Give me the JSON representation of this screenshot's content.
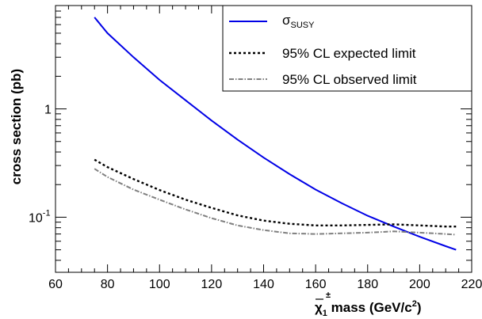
{
  "chart_data": {
    "type": "line",
    "title": "",
    "xlabel": {
      "prefix": "χ",
      "sub": "1",
      "sup": "±",
      "rest": " mass (GeV/c",
      "exp": "2",
      "close": ")"
    },
    "ylabel": "cross section (pb)",
    "xlim": [
      60,
      220
    ],
    "ylim": [
      0.031,
      9.0
    ],
    "yscale": "log",
    "xticks": [
      60,
      80,
      100,
      120,
      140,
      160,
      180,
      200,
      220
    ],
    "yticks": [
      {
        "value": 1,
        "label": "1",
        "exp": ""
      },
      {
        "value": 0.1,
        "label": "10",
        "exp": "-1"
      }
    ],
    "legend_position": "top-right",
    "series": [
      {
        "name": "σSUSY",
        "name_base": "σ",
        "name_sub": "SUSY",
        "color": "#0000e6",
        "style": "solid",
        "x": [
          75,
          80,
          90,
          100,
          110,
          120,
          130,
          140,
          150,
          160,
          170,
          180,
          190,
          200,
          210,
          214
        ],
        "y": [
          7.0,
          5.0,
          3.0,
          1.85,
          1.2,
          0.78,
          0.52,
          0.355,
          0.25,
          0.18,
          0.135,
          0.103,
          0.082,
          0.066,
          0.054,
          0.05
        ]
      },
      {
        "name": "95% CL expected limit",
        "color": "#000000",
        "style": "dashed",
        "x": [
          75,
          80,
          90,
          100,
          110,
          120,
          130,
          140,
          150,
          160,
          170,
          180,
          190,
          200,
          210,
          214
        ],
        "y": [
          0.34,
          0.29,
          0.225,
          0.178,
          0.145,
          0.122,
          0.104,
          0.093,
          0.087,
          0.084,
          0.084,
          0.085,
          0.086,
          0.084,
          0.082,
          0.082
        ]
      },
      {
        "name": "95% CL observed limit",
        "color": "#808080",
        "style": "dashdot",
        "x": [
          75,
          80,
          90,
          100,
          110,
          120,
          130,
          140,
          150,
          160,
          170,
          180,
          190,
          200,
          210,
          214
        ],
        "y": [
          0.28,
          0.235,
          0.18,
          0.145,
          0.118,
          0.098,
          0.084,
          0.076,
          0.071,
          0.07,
          0.071,
          0.072,
          0.074,
          0.072,
          0.07,
          0.069
        ]
      }
    ]
  }
}
